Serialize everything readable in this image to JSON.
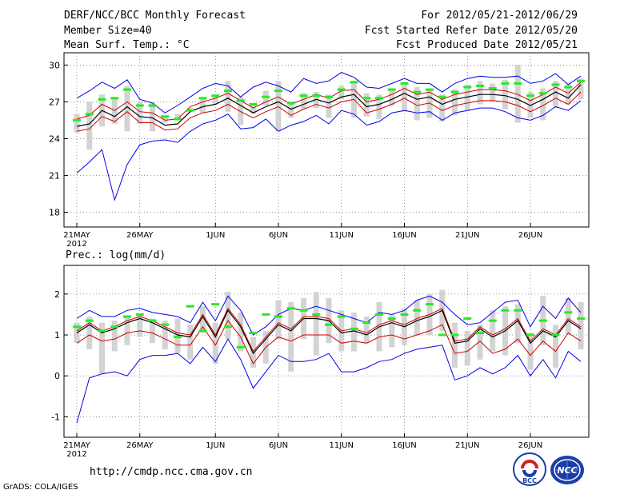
{
  "header": {
    "title": "DERF/NCC/BCC Monthly Forecast",
    "member_size": "Member Size=40",
    "variable": "Mean Surf. Temp.: °C",
    "period": "For 2012/05/21-2012/06/29",
    "start_date": "Fcst Started Refer Date 2012/05/20",
    "produced_date": "Fcst Produced Date 2012/05/21"
  },
  "footer": {
    "url": "http://cmdp.ncc.cma.gov.cn",
    "grads": "GrADS: COLA/IGES",
    "logo_bcc": "BCC",
    "logo_ncc": "NCC"
  },
  "colors": {
    "spread": "#d3d3d3",
    "max_min": "#0000ee",
    "mean": "#000000",
    "lower": "#cc0000",
    "marker": "#22ee22",
    "frame": "#000000"
  },
  "chart_data": [
    {
      "type": "line",
      "title": "Mean Surf. Temp.: °C",
      "ylim": [
        16.8,
        31
      ],
      "yticks": [
        18,
        21,
        24,
        27,
        30
      ],
      "xtick_labels": [
        {
          "day": 0,
          "label": "21MAY"
        },
        {
          "day": 5,
          "label": "26MAY"
        },
        {
          "day": 11,
          "label": "1JUN"
        },
        {
          "day": 16,
          "label": "6JUN"
        },
        {
          "day": 21,
          "label": "11JUN"
        },
        {
          "day": 26,
          "label": "16JUN"
        },
        {
          "day": 31,
          "label": "21JUN"
        },
        {
          "day": 36,
          "label": "26JUN"
        }
      ],
      "year_label": "2012",
      "series": [
        {
          "name": "max",
          "values": [
            27.3,
            27.9,
            28.6,
            28.1,
            28.8,
            27.2,
            26.9,
            26.1,
            26.7,
            27.4,
            28.1,
            28.5,
            28.3,
            27.4,
            28.2,
            28.6,
            28.3,
            27.8,
            28.9,
            28.5,
            28.7,
            29.4,
            29.0,
            28.2,
            28.1,
            28.5,
            28.9,
            28.5,
            28.5,
            27.8,
            28.5,
            28.9,
            29.1,
            29.0,
            29.0,
            29.1,
            28.5,
            28.7,
            29.3,
            28.4,
            29.1
          ]
        },
        {
          "name": "spread_high",
          "values": [
            26.0,
            27.0,
            27.6,
            27.4,
            28.3,
            27.0,
            27.0,
            25.9,
            26.0,
            26.5,
            27.3,
            27.6,
            28.7,
            27.4,
            26.9,
            27.9,
            28.7,
            27.0,
            27.7,
            27.8,
            27.6,
            28.3,
            28.7,
            27.7,
            27.6,
            28.1,
            28.6,
            28.2,
            28.0,
            27.6,
            28.0,
            28.4,
            28.7,
            28.5,
            28.8,
            30.0,
            27.8,
            28.1,
            28.7,
            28.5,
            28.9
          ]
        },
        {
          "name": "spread_low",
          "values": [
            24.5,
            23.1,
            25.0,
            25.2,
            24.6,
            25.2,
            24.6,
            25.3,
            25.7,
            26.3,
            26.1,
            26.8,
            26.2,
            25.1,
            26.0,
            26.7,
            24.6,
            25.7,
            26.4,
            26.5,
            25.7,
            27.2,
            25.7,
            25.8,
            25.6,
            26.7,
            26.2,
            25.5,
            25.7,
            25.4,
            25.9,
            26.3,
            26.8,
            27.0,
            26.4,
            25.3,
            25.7,
            25.5,
            26.5,
            26.8,
            27.2
          ]
        },
        {
          "name": "mean",
          "values": [
            25.0,
            25.2,
            26.3,
            25.8,
            26.6,
            25.8,
            25.7,
            25.1,
            25.2,
            26.2,
            26.6,
            26.8,
            27.3,
            26.7,
            26.1,
            26.6,
            27.0,
            26.4,
            26.8,
            27.2,
            26.9,
            27.4,
            27.6,
            26.6,
            26.8,
            27.2,
            27.7,
            27.2,
            27.4,
            26.8,
            27.2,
            27.4,
            27.6,
            27.6,
            27.5,
            27.2,
            26.7,
            27.2,
            27.8,
            27.3,
            28.4
          ]
        },
        {
          "name": "lower",
          "values": [
            24.6,
            24.8,
            25.8,
            25.4,
            26.2,
            25.3,
            25.3,
            24.7,
            24.8,
            25.7,
            26.1,
            26.3,
            26.8,
            26.2,
            25.7,
            26.2,
            26.6,
            25.9,
            26.4,
            26.8,
            26.5,
            27.0,
            27.2,
            26.1,
            26.4,
            26.8,
            27.3,
            26.7,
            26.9,
            26.3,
            26.7,
            26.9,
            27.1,
            27.1,
            27.0,
            26.7,
            26.2,
            26.7,
            27.3,
            26.8,
            27.8
          ]
        },
        {
          "name": "upper",
          "values": [
            25.6,
            25.9,
            26.8,
            26.3,
            27.0,
            26.2,
            26.1,
            25.5,
            25.6,
            26.6,
            27.0,
            27.3,
            27.7,
            27.1,
            26.5,
            27.0,
            27.4,
            26.8,
            27.2,
            27.6,
            27.3,
            27.9,
            28.0,
            27.0,
            27.2,
            27.6,
            28.1,
            27.6,
            27.8,
            27.2,
            27.6,
            27.8,
            28.0,
            28.0,
            27.9,
            27.6,
            27.1,
            27.6,
            28.2,
            27.7,
            28.6
          ]
        },
        {
          "name": "min",
          "values": [
            21.2,
            22.1,
            23.1,
            19.0,
            21.9,
            23.5,
            23.8,
            23.9,
            23.7,
            24.6,
            25.2,
            25.5,
            26.0,
            24.8,
            24.9,
            25.6,
            24.6,
            25.1,
            25.4,
            25.9,
            25.2,
            26.3,
            26.0,
            25.1,
            25.4,
            26.1,
            26.3,
            26.1,
            26.2,
            25.5,
            26.1,
            26.3,
            26.5,
            26.5,
            26.2,
            25.7,
            25.5,
            25.9,
            26.6,
            26.3,
            27.1
          ]
        },
        {
          "name": "markers",
          "values": [
            25.5,
            26.0,
            27.2,
            27.3,
            28.0,
            26.7,
            26.7,
            25.8,
            25.6,
            26.3,
            27.3,
            27.5,
            27.9,
            27.1,
            26.8,
            27.4,
            27.9,
            26.9,
            27.5,
            27.5,
            27.4,
            28.0,
            28.6,
            27.3,
            27.3,
            28.0,
            28.5,
            27.8,
            28.0,
            27.4,
            27.8,
            28.2,
            28.3,
            28.1,
            28.5,
            28.5,
            27.5,
            27.7,
            28.4,
            28.2,
            28.7
          ]
        }
      ]
    },
    {
      "type": "line",
      "title": "Prec.: log(mm/d)",
      "ylim": [
        -1.5,
        2.7
      ],
      "yticks": [
        -1,
        0,
        1,
        2
      ],
      "xtick_labels": [
        {
          "day": 0,
          "label": "21MAY"
        },
        {
          "day": 5,
          "label": "26MAY"
        },
        {
          "day": 11,
          "label": "1JUN"
        },
        {
          "day": 16,
          "label": "6JUN"
        },
        {
          "day": 21,
          "label": "11JUN"
        },
        {
          "day": 26,
          "label": "16JUN"
        },
        {
          "day": 31,
          "label": "21JUN"
        },
        {
          "day": 36,
          "label": "26JUN"
        }
      ],
      "year_label": "2012",
      "series": [
        {
          "name": "max",
          "values": [
            1.4,
            1.6,
            1.45,
            1.45,
            1.6,
            1.65,
            1.55,
            1.5,
            1.45,
            1.3,
            1.8,
            1.35,
            1.95,
            1.6,
            1.0,
            1.2,
            1.5,
            1.65,
            1.6,
            1.7,
            1.6,
            1.5,
            1.4,
            1.3,
            1.55,
            1.5,
            1.6,
            1.85,
            1.95,
            1.8,
            1.5,
            1.25,
            1.3,
            1.55,
            1.8,
            1.85,
            1.2,
            1.7,
            1.4,
            1.9,
            1.55
          ]
        },
        {
          "name": "spread_high",
          "values": [
            1.3,
            1.45,
            1.3,
            1.35,
            1.45,
            1.5,
            1.4,
            1.35,
            1.4,
            1.25,
            1.7,
            1.3,
            2.05,
            1.55,
            0.95,
            1.1,
            1.85,
            1.8,
            1.9,
            2.05,
            1.9,
            1.6,
            1.55,
            1.45,
            1.8,
            1.5,
            1.65,
            1.85,
            2.0,
            2.1,
            1.3,
            1.1,
            1.25,
            1.6,
            1.7,
            1.75,
            1.05,
            1.95,
            1.25,
            1.9,
            1.8
          ]
        },
        {
          "name": "spread_low",
          "values": [
            0.8,
            0.65,
            0.05,
            0.6,
            0.75,
            0.95,
            0.8,
            0.65,
            0.55,
            0.4,
            1.05,
            0.3,
            0.9,
            0.6,
            0.2,
            0.3,
            0.9,
            0.1,
            0.9,
            0.5,
            0.8,
            0.6,
            0.6,
            0.8,
            0.6,
            0.7,
            0.75,
            1.0,
            1.0,
            1.1,
            0.2,
            0.25,
            0.4,
            0.6,
            0.5,
            0.8,
            0.15,
            0.75,
            0.2,
            1.0,
            0.65
          ]
        },
        {
          "name": "mean",
          "values": [
            1.05,
            1.25,
            1.05,
            1.15,
            1.3,
            1.4,
            1.3,
            1.15,
            1.0,
            0.95,
            1.45,
            0.95,
            1.6,
            1.2,
            0.55,
            0.9,
            1.25,
            1.1,
            1.4,
            1.4,
            1.35,
            1.05,
            1.1,
            1.0,
            1.2,
            1.3,
            1.2,
            1.35,
            1.45,
            1.6,
            0.8,
            0.85,
            1.15,
            0.95,
            1.1,
            1.35,
            0.8,
            1.1,
            0.95,
            1.35,
            1.15
          ]
        },
        {
          "name": "lower",
          "values": [
            0.8,
            1.0,
            0.85,
            0.9,
            1.05,
            1.1,
            1.05,
            0.9,
            0.75,
            0.75,
            1.2,
            0.75,
            1.35,
            0.95,
            0.3,
            0.7,
            0.95,
            0.85,
            1.0,
            1.0,
            1.0,
            0.8,
            0.85,
            0.8,
            0.95,
            1.0,
            0.9,
            1.0,
            1.1,
            1.25,
            0.55,
            0.6,
            0.85,
            0.55,
            0.65,
            0.9,
            0.5,
            0.85,
            0.6,
            1.05,
            0.85
          ]
        },
        {
          "name": "upper",
          "values": [
            1.1,
            1.3,
            1.1,
            1.2,
            1.35,
            1.45,
            1.35,
            1.2,
            1.05,
            1.0,
            1.5,
            1.0,
            1.65,
            1.25,
            0.6,
            0.95,
            1.3,
            1.15,
            1.45,
            1.45,
            1.4,
            1.1,
            1.15,
            1.05,
            1.25,
            1.35,
            1.25,
            1.4,
            1.5,
            1.65,
            0.85,
            0.9,
            1.2,
            1.0,
            1.15,
            1.4,
            0.85,
            1.15,
            1.0,
            1.4,
            1.2
          ]
        },
        {
          "name": "min",
          "values": [
            -1.15,
            -0.05,
            0.05,
            0.1,
            0.0,
            0.4,
            0.5,
            0.5,
            0.55,
            0.3,
            0.7,
            0.35,
            0.9,
            0.4,
            -0.3,
            0.1,
            0.5,
            0.35,
            0.35,
            0.4,
            0.55,
            0.1,
            0.1,
            0.2,
            0.35,
            0.4,
            0.55,
            0.65,
            0.7,
            0.75,
            -0.1,
            0.0,
            0.2,
            0.05,
            0.2,
            0.5,
            0.0,
            0.4,
            -0.05,
            0.6,
            0.35
          ]
        },
        {
          "name": "markers",
          "values": [
            1.2,
            1.35,
            1.1,
            1.2,
            1.45,
            1.5,
            1.35,
            1.25,
            0.95,
            1.7,
            1.1,
            1.75,
            1.2,
            0.7,
            1.05,
            1.5,
            1.45,
            1.65,
            1.6,
            1.5,
            1.25,
            1.45,
            1.15,
            1.3,
            1.5,
            1.4,
            1.5,
            1.6,
            1.75,
            1.0,
            1.0,
            1.4,
            1.05,
            1.35,
            1.6,
            1.6,
            1.0,
            1.35,
            1.0,
            1.55,
            1.4
          ]
        }
      ]
    }
  ]
}
